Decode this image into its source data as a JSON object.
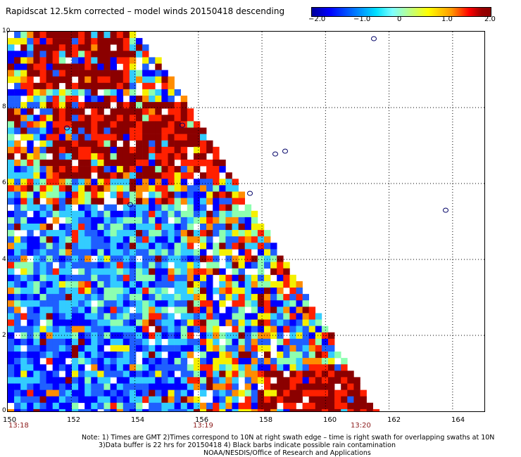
{
  "title": "Rapidscat 12.5km corrected – model winds 20150418 descending",
  "colorbar": {
    "ticks": [
      "−2.0",
      "−1.0",
      "0",
      "1.0",
      "2.0"
    ],
    "range": [
      -2.0,
      2.0
    ],
    "colors": [
      "#00009a",
      "#0000ff",
      "#0066ff",
      "#00e0ff",
      "#7dffff",
      "#aaffaa",
      "#ffff00",
      "#ff9900",
      "#ff0000",
      "#8b0000"
    ]
  },
  "map": {
    "lon_range": [
      150,
      165
    ],
    "lat_range": [
      0,
      10
    ],
    "x_ticks": [
      "150",
      "152",
      "154",
      "156",
      "158",
      "160",
      "162",
      "164"
    ],
    "y_ticks": [
      "10",
      "8",
      "6",
      "4",
      "2",
      "0"
    ],
    "times": [
      "13:18",
      "13:19",
      "13:20"
    ],
    "swath_colors": {
      "blue": "#0000ff",
      "mid_blue": "#1f5fff",
      "cyan": "#33ccff",
      "light_green": "#8dffb0",
      "yellow": "#f5f000",
      "orange": "#ff8c00",
      "red": "#ff2000",
      "dark_red": "#8b0000"
    }
  },
  "notes": [
    "Note: 1) Times are GMT 2)Times correspond to 10N at right swath edge – time is right swath for overlapping swaths at 10N",
    "3)Data buffer is 22 hrs for 20150418 4) Black barbs indicate possible rain contamination",
    "NOAA/NESDIS/Office of Research and Applications"
  ]
}
